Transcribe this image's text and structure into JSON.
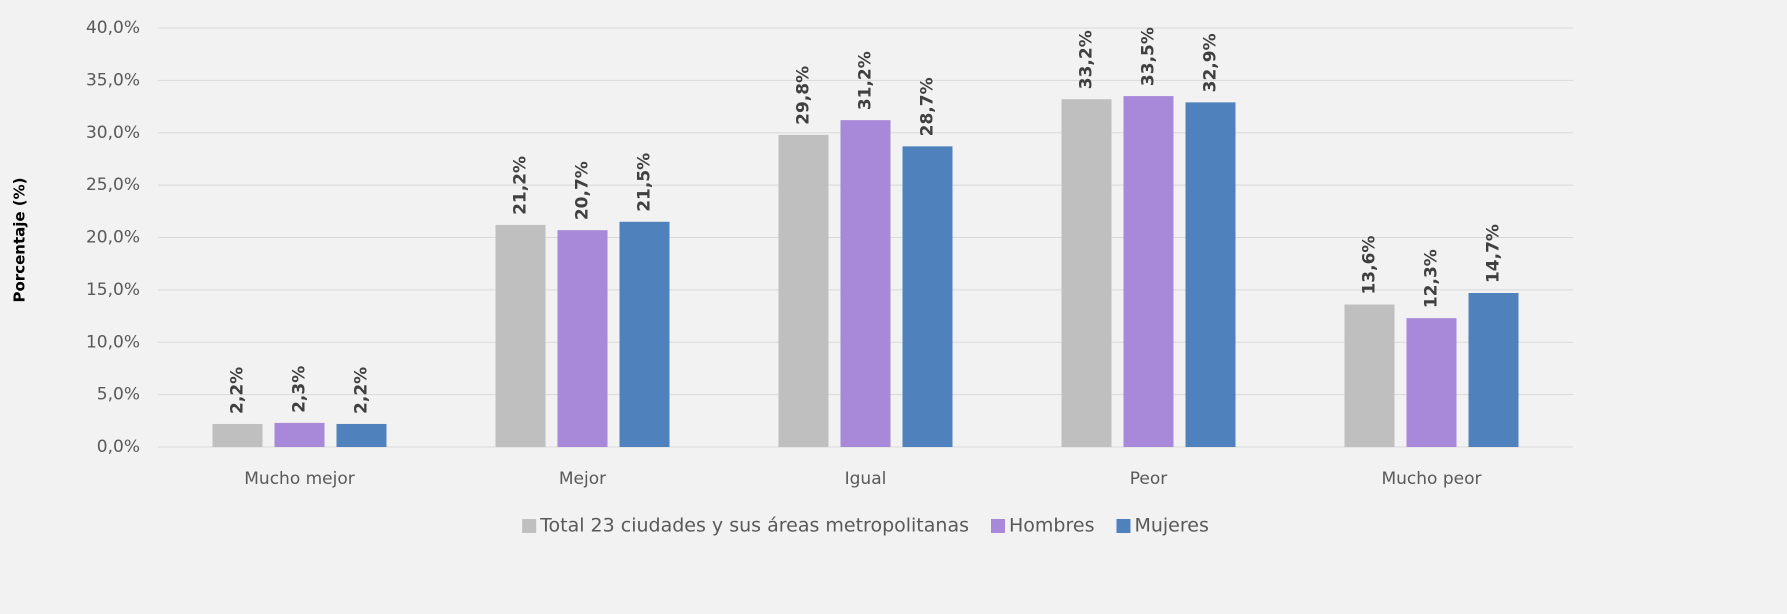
{
  "chart_data": {
    "type": "bar",
    "y_axis_label": "Porcentaje (%)",
    "categories": [
      "Mucho mejor",
      "Mejor",
      "Igual",
      "Peor",
      "Mucho peor"
    ],
    "series": [
      {
        "name": "Total 23 ciudades y sus áreas metropolitanas",
        "color": "#bfbfbf",
        "values": [
          2.2,
          21.2,
          29.8,
          33.2,
          13.6
        ],
        "value_labels": [
          "2,2%",
          "21,2%",
          "29,8%",
          "33,2%",
          "13,6%"
        ]
      },
      {
        "name": "Hombres",
        "color": "#a788d9",
        "values": [
          2.3,
          20.7,
          31.2,
          33.5,
          12.3
        ],
        "value_labels": [
          "2,3%",
          "20,7%",
          "31,2%",
          "33,5%",
          "12,3%"
        ]
      },
      {
        "name": "Mujeres",
        "color": "#4f81bd",
        "values": [
          2.2,
          21.5,
          28.7,
          32.9,
          14.7
        ],
        "value_labels": [
          "2,2%",
          "21,5%",
          "28,7%",
          "32,9%",
          "14,7%"
        ]
      }
    ],
    "ylim": [
      0,
      40
    ],
    "yticks": [
      {
        "value": 0,
        "label": "0,0%"
      },
      {
        "value": 5,
        "label": "5,0%"
      },
      {
        "value": 10,
        "label": "10,0%"
      },
      {
        "value": 15,
        "label": "15,0%"
      },
      {
        "value": 20,
        "label": "20,0%"
      },
      {
        "value": 25,
        "label": "25,0%"
      },
      {
        "value": 30,
        "label": "30,0%"
      },
      {
        "value": 35,
        "label": "35,0%"
      },
      {
        "value": 40,
        "label": "40,0%"
      }
    ],
    "grid": true,
    "legend": "bottom"
  }
}
